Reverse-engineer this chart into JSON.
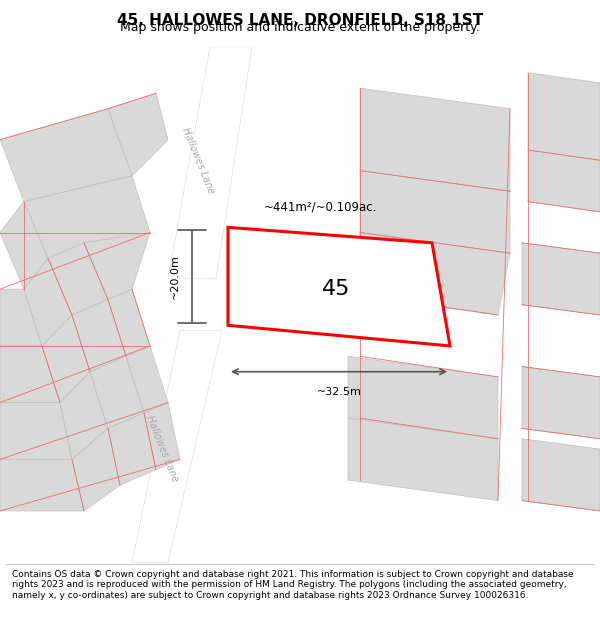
{
  "title": "45, HALLOWES LANE, DRONFIELD, S18 1ST",
  "subtitle": "Map shows position and indicative extent of the property.",
  "footer": "Contains OS data © Crown copyright and database right 2021. This information is subject to Crown copyright and database rights 2023 and is reproduced with the permission of HM Land Registry. The polygons (including the associated geometry, namely x, y co-ordinates) are subject to Crown copyright and database rights 2023 Ordnance Survey 100026316.",
  "bg_color": "#f5f5f5",
  "map_bg": "#ffffff",
  "road_color": "#ffffff",
  "building_color": "#d9d9d9",
  "building_outline": "#c0c0c0",
  "pink_line_color": "#e87070",
  "red_outline_color": "#ff0000",
  "area_text": "~441m²/~0.109ac.",
  "label_45": "45",
  "dim_width": "~32.5m",
  "dim_height": "~20.0m",
  "lane_label_upper": "Hallowes Lane",
  "lane_label_lower": "Hallowes Lane",
  "title_fontsize": 11,
  "subtitle_fontsize": 9,
  "footer_fontsize": 6.5
}
